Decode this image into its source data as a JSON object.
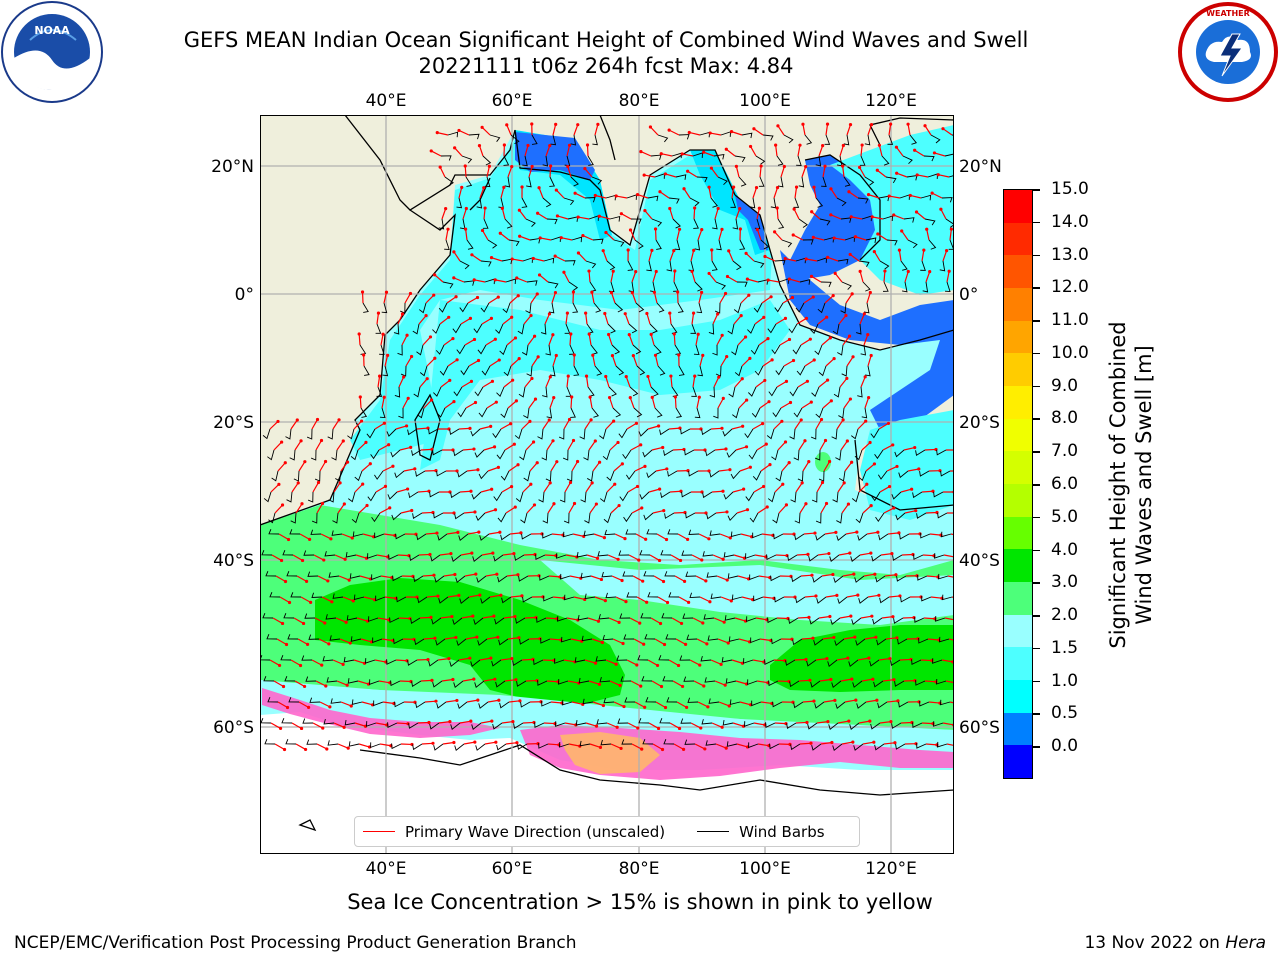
{
  "header": {
    "title_line1": "GEFS MEAN Indian Ocean Significant Height of Combined Wind Waves and Swell",
    "title_line2": "20221111 t06z 264h fcst   Max: 4.84"
  },
  "logos": {
    "left": "NOAA",
    "right": "NATIONAL WEATHER SERVICE"
  },
  "map": {
    "lon_labels": [
      "40°E",
      "60°E",
      "80°E",
      "100°E",
      "120°E"
    ],
    "lat_labels_left": [
      "20°N",
      "0°",
      "20°S",
      "40°S",
      "60°S"
    ],
    "lat_labels_right": [
      "20°N",
      "0°",
      "20°S",
      "40°S",
      "60°S"
    ]
  },
  "colorbar": {
    "label_line1": "Significant Height of Combined",
    "label_line2": "Wind Waves and Swell [m]",
    "ticks": [
      "15.0",
      "14.0",
      "13.0",
      "12.0",
      "11.0",
      "10.0",
      "9.0",
      "8.0",
      "7.0",
      "6.0",
      "5.0",
      "4.0",
      "3.0",
      "2.0",
      "1.5",
      "1.0",
      "0.5",
      "0.0"
    ],
    "colors": [
      "#ff0000",
      "#ff2a00",
      "#ff5500",
      "#ff8000",
      "#ffa500",
      "#ffcc00",
      "#ffee00",
      "#f0ff00",
      "#d4ff00",
      "#b4ff00",
      "#66ff00",
      "#00e600",
      "#4dff7a",
      "#99ffff",
      "#4dffff",
      "#00ffff",
      "#0080ff",
      "#0000ff"
    ]
  },
  "legend": {
    "wave_label": "Primary Wave Direction (unscaled)",
    "wind_label": "Wind Barbs",
    "wave_color": "#ff0000",
    "wind_color": "#000000"
  },
  "subtitle": "Sea Ice Concentration > 15% is shown in pink to yellow",
  "footer": {
    "left": "NCEP/EMC/Verification Post Processing Product Generation Branch",
    "date": "13 Nov 2022 on ",
    "host": "Hera"
  }
}
